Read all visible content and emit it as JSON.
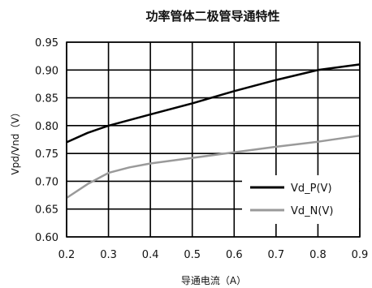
{
  "chart_data": {
    "type": "line",
    "title": "功率管体二极管导通特性",
    "xlabel": "导通电流（A）",
    "ylabel": "Vpd/Vnd（V）",
    "xlim": [
      0.2,
      0.9
    ],
    "ylim": [
      0.6,
      0.95
    ],
    "xticks": [
      "0.2",
      "0.3",
      "0.4",
      "0.5",
      "0.6",
      "0.7",
      "0.8",
      "0.9"
    ],
    "yticks": [
      "0.60",
      "0.65",
      "0.70",
      "0.75",
      "0.80",
      "0.85",
      "0.90",
      "0.95"
    ],
    "grid": true,
    "legend_position": "bottom-right",
    "series": [
      {
        "name": "Vd_P(V)",
        "color": "#000000",
        "x": [
          0.2,
          0.25,
          0.3,
          0.4,
          0.5,
          0.6,
          0.7,
          0.8,
          0.9
        ],
        "y": [
          0.77,
          0.787,
          0.8,
          0.82,
          0.84,
          0.862,
          0.882,
          0.9,
          0.91
        ]
      },
      {
        "name": "Vd_N(V)",
        "color": "#9a9a9a",
        "x": [
          0.2,
          0.25,
          0.3,
          0.35,
          0.4,
          0.5,
          0.6,
          0.7,
          0.8,
          0.9
        ],
        "y": [
          0.67,
          0.695,
          0.715,
          0.725,
          0.732,
          0.742,
          0.752,
          0.762,
          0.771,
          0.782
        ]
      }
    ]
  }
}
